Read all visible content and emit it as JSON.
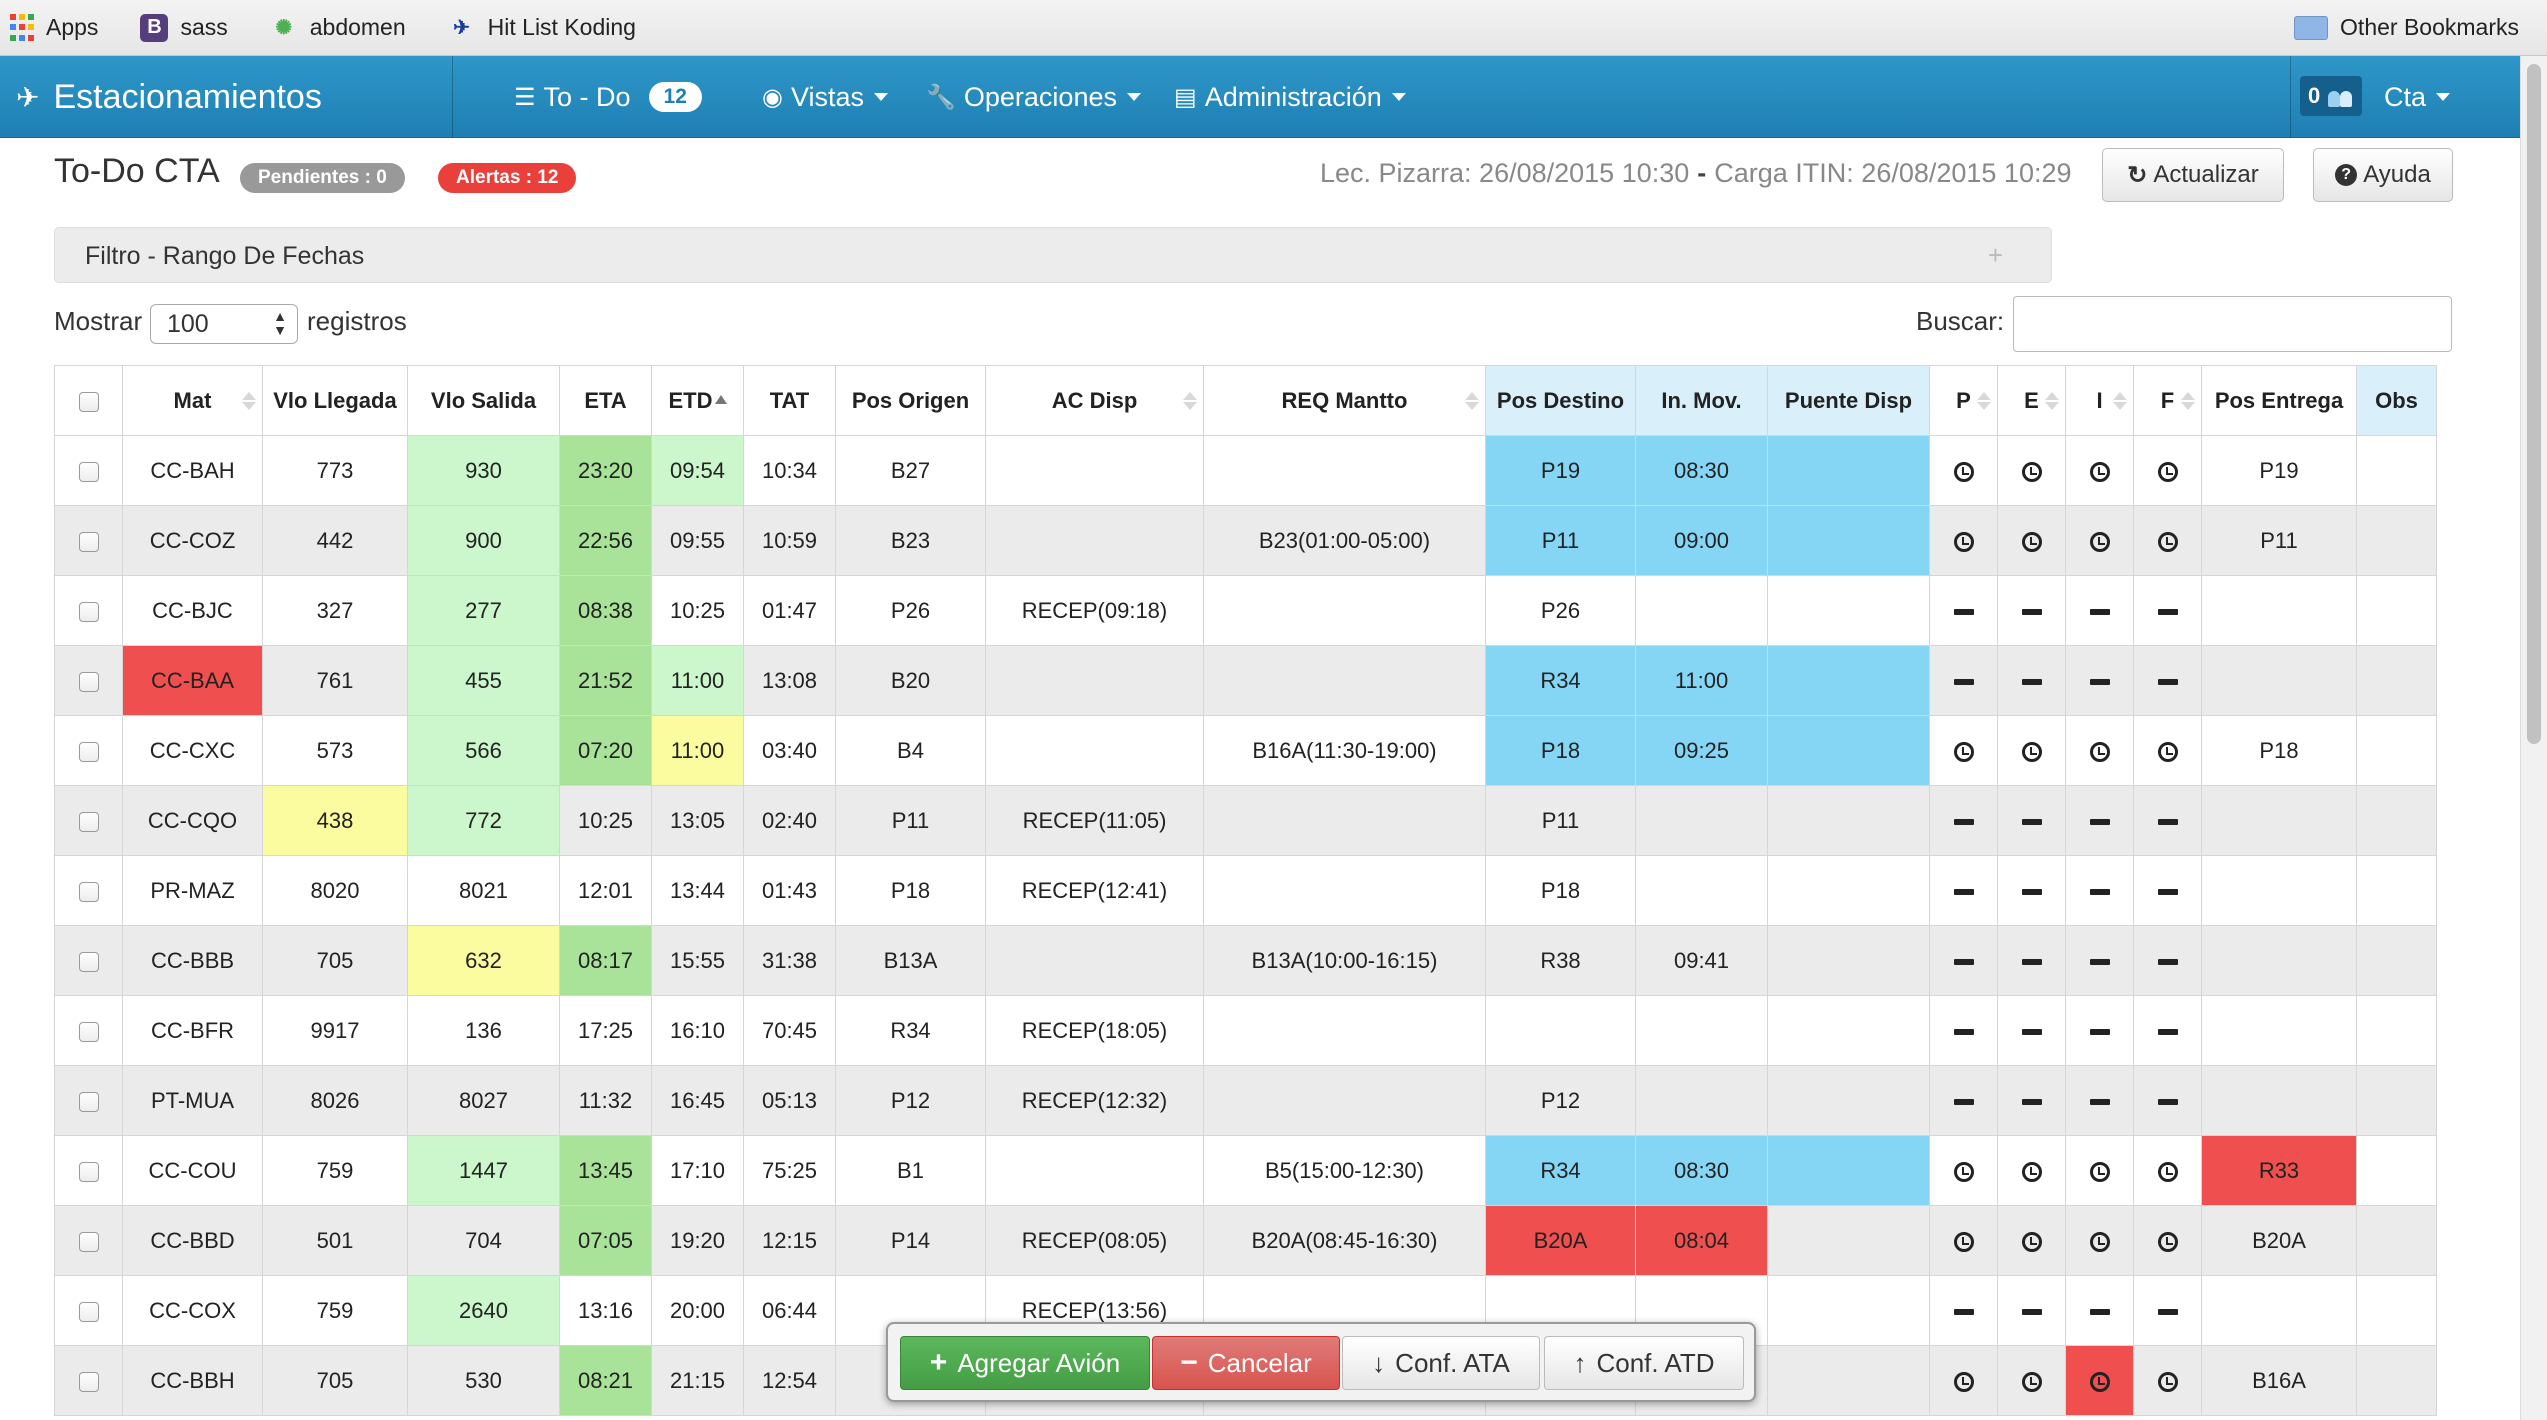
{
  "bookmarks": {
    "items": [
      {
        "label": "Apps",
        "icon": "apps-grid-icon"
      },
      {
        "label": "sass",
        "icon": "bootstrap-icon"
      },
      {
        "label": "abdomen",
        "icon": "spinner-icon"
      },
      {
        "label": "Hit List Koding",
        "icon": "runner-icon"
      }
    ],
    "other": "Other Bookmarks"
  },
  "navbar": {
    "brand": "Estacionamientos",
    "todo_label": "To - Do",
    "todo_count": "12",
    "vistas": "Vistas",
    "operaciones": "Operaciones",
    "administracion": "Administración",
    "user_count": "0",
    "account": "Cta"
  },
  "page": {
    "title": "To-Do CTA",
    "pending_badge": "Pendientes : 0",
    "alerts_badge": "Alertas : 12",
    "lec_pizarra": "Lec. Pizarra: 26/08/2015 10:30",
    "separator": "-",
    "carga_itin": "Carga ITIN: 26/08/2015 10:29",
    "refresh_label": "Actualizar",
    "help_label": "Ayuda"
  },
  "filter": {
    "title": "Filtro - Rango De Fechas",
    "toggle": "+"
  },
  "controls": {
    "show_label": "Mostrar",
    "show_value": "100",
    "records_label": "registros",
    "search_label": "Buscar:",
    "search_value": ""
  },
  "table": {
    "columns": [
      "Mat",
      "Vlo Llegada",
      "Vlo Salida",
      "ETA",
      "ETD",
      "TAT",
      "Pos Origen",
      "AC Disp",
      "REQ Mantto",
      "Pos Destino",
      "In. Mov.",
      "Puente Disp",
      "P",
      "E",
      "I",
      "F",
      "Pos Entrega",
      "Obs"
    ],
    "rows": [
      {
        "mat": "CC-BAH",
        "vlo_llegada": "773",
        "vlo_salida": "930",
        "eta": "23:20",
        "etd": "09:54",
        "tat": "10:34",
        "pos_origen": "B27",
        "ac_disp": "",
        "req_mantto": "",
        "pos_destino": "P19",
        "in_mov": "08:30",
        "puente_disp": "",
        "peif": [
          "clock",
          "clock",
          "clock",
          "clock"
        ],
        "pos_entrega": "P19",
        "obs": ""
      },
      {
        "mat": "CC-COZ",
        "vlo_llegada": "442",
        "vlo_salida": "900",
        "eta": "22:56",
        "etd": "09:55",
        "tat": "10:59",
        "pos_origen": "B23",
        "ac_disp": "",
        "req_mantto": "B23(01:00-05:00)",
        "pos_destino": "P11",
        "in_mov": "09:00",
        "puente_disp": "",
        "peif": [
          "clock",
          "clock",
          "clock",
          "clock"
        ],
        "pos_entrega": "P11",
        "obs": ""
      },
      {
        "mat": "CC-BJC",
        "vlo_llegada": "327",
        "vlo_salida": "277",
        "eta": "08:38",
        "etd": "10:25",
        "tat": "01:47",
        "pos_origen": "P26",
        "ac_disp": "RECEP(09:18)",
        "req_mantto": "",
        "pos_destino": "P26",
        "in_mov": "",
        "puente_disp": "",
        "peif": [
          "dash",
          "dash",
          "dash",
          "dash"
        ],
        "pos_entrega": "",
        "obs": ""
      },
      {
        "mat": "CC-BAA",
        "vlo_llegada": "761",
        "vlo_salida": "455",
        "eta": "21:52",
        "etd": "11:00",
        "tat": "13:08",
        "pos_origen": "B20",
        "ac_disp": "",
        "req_mantto": "",
        "pos_destino": "R34",
        "in_mov": "11:00",
        "puente_disp": "",
        "peif": [
          "dash",
          "dash",
          "dash",
          "dash"
        ],
        "pos_entrega": "",
        "obs": ""
      },
      {
        "mat": "CC-CXC",
        "vlo_llegada": "573",
        "vlo_salida": "566",
        "eta": "07:20",
        "etd": "11:00",
        "tat": "03:40",
        "pos_origen": "B4",
        "ac_disp": "",
        "req_mantto": "B16A(11:30-19:00)",
        "pos_destino": "P18",
        "in_mov": "09:25",
        "puente_disp": "",
        "peif": [
          "clock",
          "clock",
          "clock",
          "clock"
        ],
        "pos_entrega": "P18",
        "obs": ""
      },
      {
        "mat": "CC-CQO",
        "vlo_llegada": "438",
        "vlo_salida": "772",
        "eta": "10:25",
        "etd": "13:05",
        "tat": "02:40",
        "pos_origen": "P11",
        "ac_disp": "RECEP(11:05)",
        "req_mantto": "",
        "pos_destino": "P11",
        "in_mov": "",
        "puente_disp": "",
        "peif": [
          "dash",
          "dash",
          "dash",
          "dash"
        ],
        "pos_entrega": "",
        "obs": ""
      },
      {
        "mat": "PR-MAZ",
        "vlo_llegada": "8020",
        "vlo_salida": "8021",
        "eta": "12:01",
        "etd": "13:44",
        "tat": "01:43",
        "pos_origen": "P18",
        "ac_disp": "RECEP(12:41)",
        "req_mantto": "",
        "pos_destino": "P18",
        "in_mov": "",
        "puente_disp": "",
        "peif": [
          "dash",
          "dash",
          "dash",
          "dash"
        ],
        "pos_entrega": "",
        "obs": ""
      },
      {
        "mat": "CC-BBB",
        "vlo_llegada": "705",
        "vlo_salida": "632",
        "eta": "08:17",
        "etd": "15:55",
        "tat": "31:38",
        "pos_origen": "B13A",
        "ac_disp": "",
        "req_mantto": "B13A(10:00-16:15)",
        "pos_destino": "R38",
        "in_mov": "09:41",
        "puente_disp": "",
        "peif": [
          "dash",
          "dash",
          "dash",
          "dash"
        ],
        "pos_entrega": "",
        "obs": ""
      },
      {
        "mat": "CC-BFR",
        "vlo_llegada": "9917",
        "vlo_salida": "136",
        "eta": "17:25",
        "etd": "16:10",
        "tat": "70:45",
        "pos_origen": "R34",
        "ac_disp": "RECEP(18:05)",
        "req_mantto": "",
        "pos_destino": "",
        "in_mov": "",
        "puente_disp": "",
        "peif": [
          "dash",
          "dash",
          "dash",
          "dash"
        ],
        "pos_entrega": "",
        "obs": ""
      },
      {
        "mat": "PT-MUA",
        "vlo_llegada": "8026",
        "vlo_salida": "8027",
        "eta": "11:32",
        "etd": "16:45",
        "tat": "05:13",
        "pos_origen": "P12",
        "ac_disp": "RECEP(12:32)",
        "req_mantto": "",
        "pos_destino": "P12",
        "in_mov": "",
        "puente_disp": "",
        "peif": [
          "dash",
          "dash",
          "dash",
          "dash"
        ],
        "pos_entrega": "",
        "obs": ""
      },
      {
        "mat": "CC-COU",
        "vlo_llegada": "759",
        "vlo_salida": "1447",
        "eta": "13:45",
        "etd": "17:10",
        "tat": "75:25",
        "pos_origen": "B1",
        "ac_disp": "",
        "req_mantto": "B5(15:00-12:30)",
        "pos_destino": "R34",
        "in_mov": "08:30",
        "puente_disp": "",
        "peif": [
          "clock",
          "clock",
          "clock",
          "clock"
        ],
        "pos_entrega": "R33",
        "obs": ""
      },
      {
        "mat": "CC-BBD",
        "vlo_llegada": "501",
        "vlo_salida": "704",
        "eta": "07:05",
        "etd": "19:20",
        "tat": "12:15",
        "pos_origen": "P14",
        "ac_disp": "RECEP(08:05)",
        "req_mantto": "B20A(08:45-16:30)",
        "pos_destino": "B20A",
        "in_mov": "08:04",
        "puente_disp": "",
        "peif": [
          "clock",
          "clock",
          "clock",
          "clock"
        ],
        "pos_entrega": "B20A",
        "obs": ""
      },
      {
        "mat": "CC-COX",
        "vlo_llegada": "759",
        "vlo_salida": "2640",
        "eta": "13:16",
        "etd": "20:00",
        "tat": "06:44",
        "pos_origen": "",
        "ac_disp": "RECEP(13:56)",
        "req_mantto": "",
        "pos_destino": "",
        "in_mov": "",
        "puente_disp": "",
        "peif": [
          "dash",
          "dash",
          "dash",
          "dash"
        ],
        "pos_entrega": "",
        "obs": ""
      },
      {
        "mat": "CC-BBH",
        "vlo_llegada": "705",
        "vlo_salida": "530",
        "eta": "08:21",
        "etd": "21:15",
        "tat": "12:54",
        "pos_origen": "",
        "ac_disp": "",
        "req_mantto": "",
        "pos_destino": "",
        "in_mov": "",
        "puente_disp": "",
        "peif": [
          "clock",
          "clock",
          "clock",
          "clock"
        ],
        "pos_entrega": "B16A",
        "obs": ""
      }
    ],
    "cell_colors": {
      "0": {
        "vlo_salida": "lg",
        "eta": "g",
        "etd": "lg",
        "pos_destino": "b",
        "in_mov": "b",
        "puente_disp": "b"
      },
      "1": {
        "vlo_salida": "lg",
        "eta": "g",
        "pos_destino": "b",
        "in_mov": "b",
        "puente_disp": "b"
      },
      "2": {
        "vlo_salida": "lg",
        "eta": "g"
      },
      "3": {
        "mat": "r",
        "vlo_salida": "lg",
        "eta": "g",
        "etd": "lg",
        "pos_destino": "b",
        "in_mov": "b",
        "puente_disp": "b"
      },
      "4": {
        "vlo_salida": "lg",
        "eta": "g",
        "etd": "y",
        "pos_destino": "b",
        "in_mov": "b",
        "puente_disp": "b"
      },
      "5": {
        "vlo_llegada": "y",
        "vlo_salida": "lg"
      },
      "7": {
        "vlo_salida": "y",
        "eta": "g"
      },
      "10": {
        "vlo_salida": "lg",
        "eta": "g",
        "pos_destino": "b",
        "in_mov": "b",
        "puente_disp": "b",
        "pos_entrega": "r"
      },
      "11": {
        "eta": "g",
        "pos_destino": "r",
        "in_mov": "r"
      },
      "12": {
        "vlo_salida": "lg"
      },
      "13": {
        "eta": "g",
        "i": "r"
      }
    }
  },
  "actions": {
    "add": "Agregar Avión",
    "cancel": "Cancelar",
    "conf_ata": "Conf. ATA",
    "conf_atd": "Conf. ATD"
  },
  "colors": {
    "navbar": "#1e7fb3",
    "light_green": "#ccf7cc",
    "green": "#a9e39a",
    "yellow": "#fbfba0",
    "red": "#f04f4f",
    "blue": "#85d6f5"
  }
}
